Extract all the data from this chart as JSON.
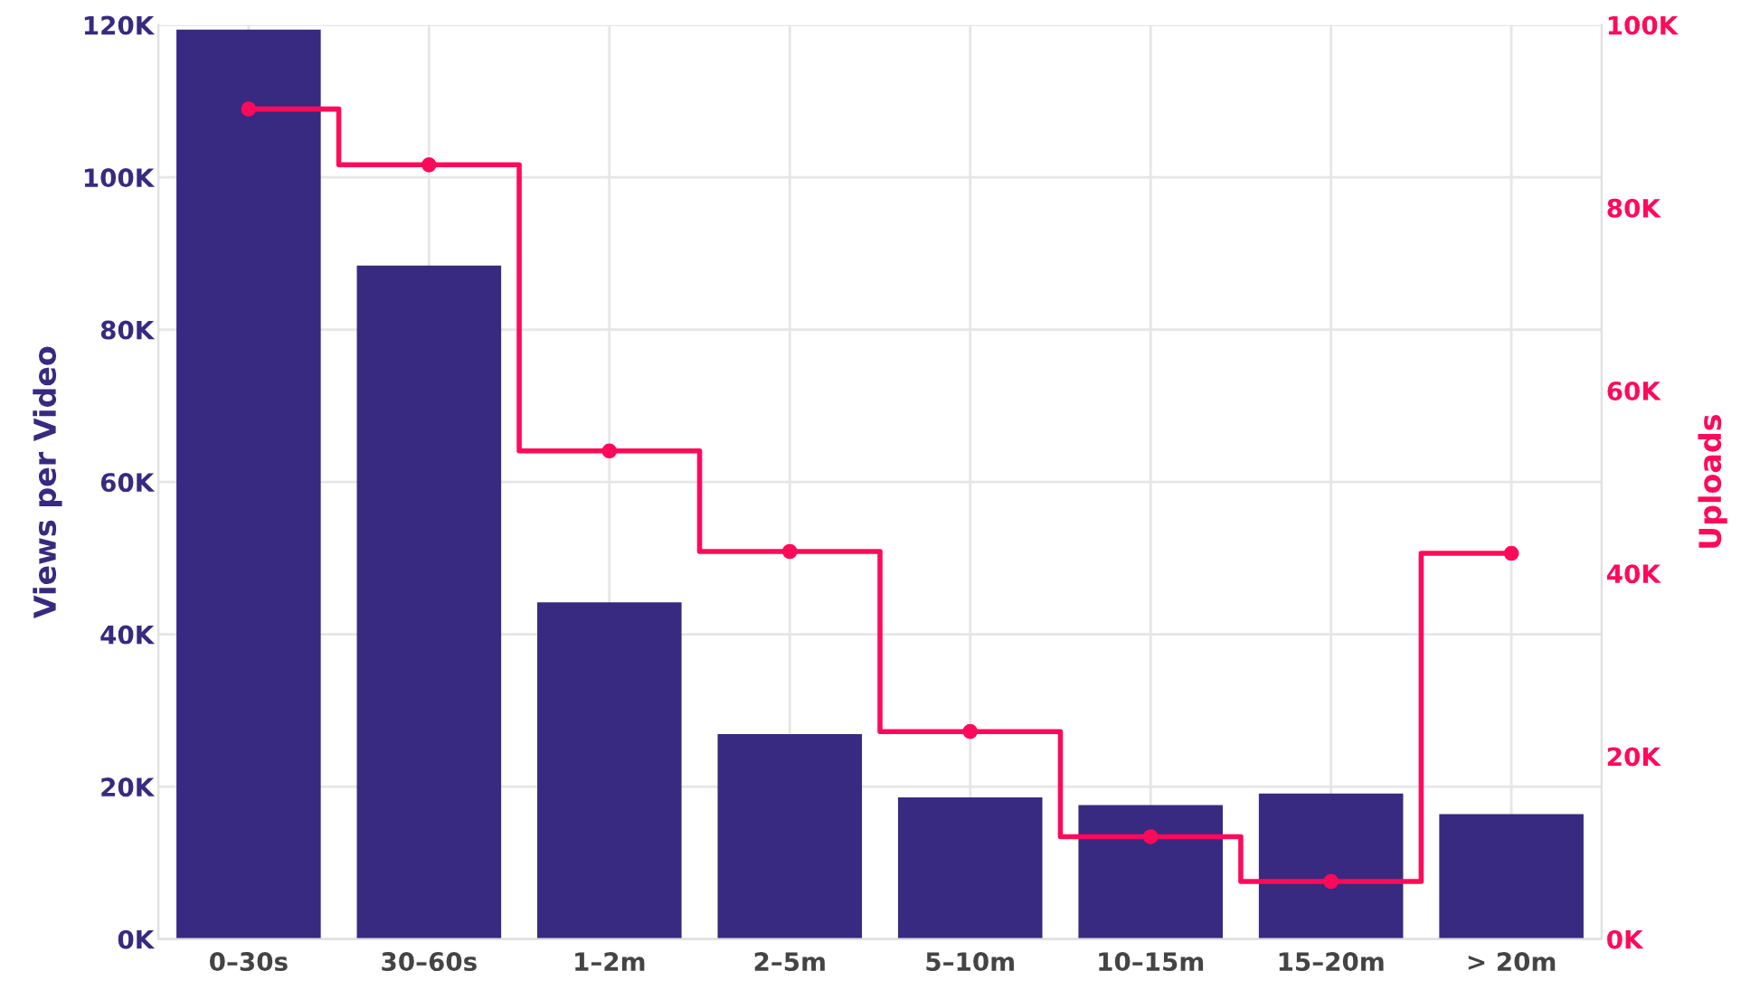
{
  "chart_data": {
    "type": "bar",
    "categories": [
      "0–30s",
      "30–60s",
      "1–2m",
      "2–5m",
      "5–10m",
      "10–15m",
      "15–20m",
      "> 20m"
    ],
    "ylabel": "Views per Video",
    "y2label": "Uploads",
    "series": [
      {
        "color": "#372a80",
        "values": [
          119400,
          88400,
          44200,
          26900,
          18600,
          17600,
          19100,
          16400
        ]
      },
      {
        "type": "step",
        "axis": "y2",
        "color": "#ff0a5a",
        "marker": "circle",
        "values": [
          90800,
          84700,
          53400,
          42400,
          22700,
          11200,
          6300,
          42200
        ]
      }
    ],
    "ylim": [
      0,
      120000
    ],
    "yticks": [
      {
        "value": 0,
        "label": "0K"
      },
      {
        "value": 20000,
        "label": "20K"
      },
      {
        "value": 40000,
        "label": "40K"
      },
      {
        "value": 60000,
        "label": "60K"
      },
      {
        "value": 80000,
        "label": "80K"
      },
      {
        "value": 100000,
        "label": "100K"
      },
      {
        "value": 120000,
        "label": "120K"
      }
    ],
    "y2lim": [
      0,
      100000
    ],
    "y2ticks": [
      {
        "value": 0,
        "label": "0K"
      },
      {
        "value": 20000,
        "label": "20K"
      },
      {
        "value": 40000,
        "label": "40K"
      },
      {
        "value": 60000,
        "label": "60K"
      },
      {
        "value": 80000,
        "label": "80K"
      },
      {
        "value": 100000,
        "label": "100K"
      }
    ],
    "grid": true
  }
}
